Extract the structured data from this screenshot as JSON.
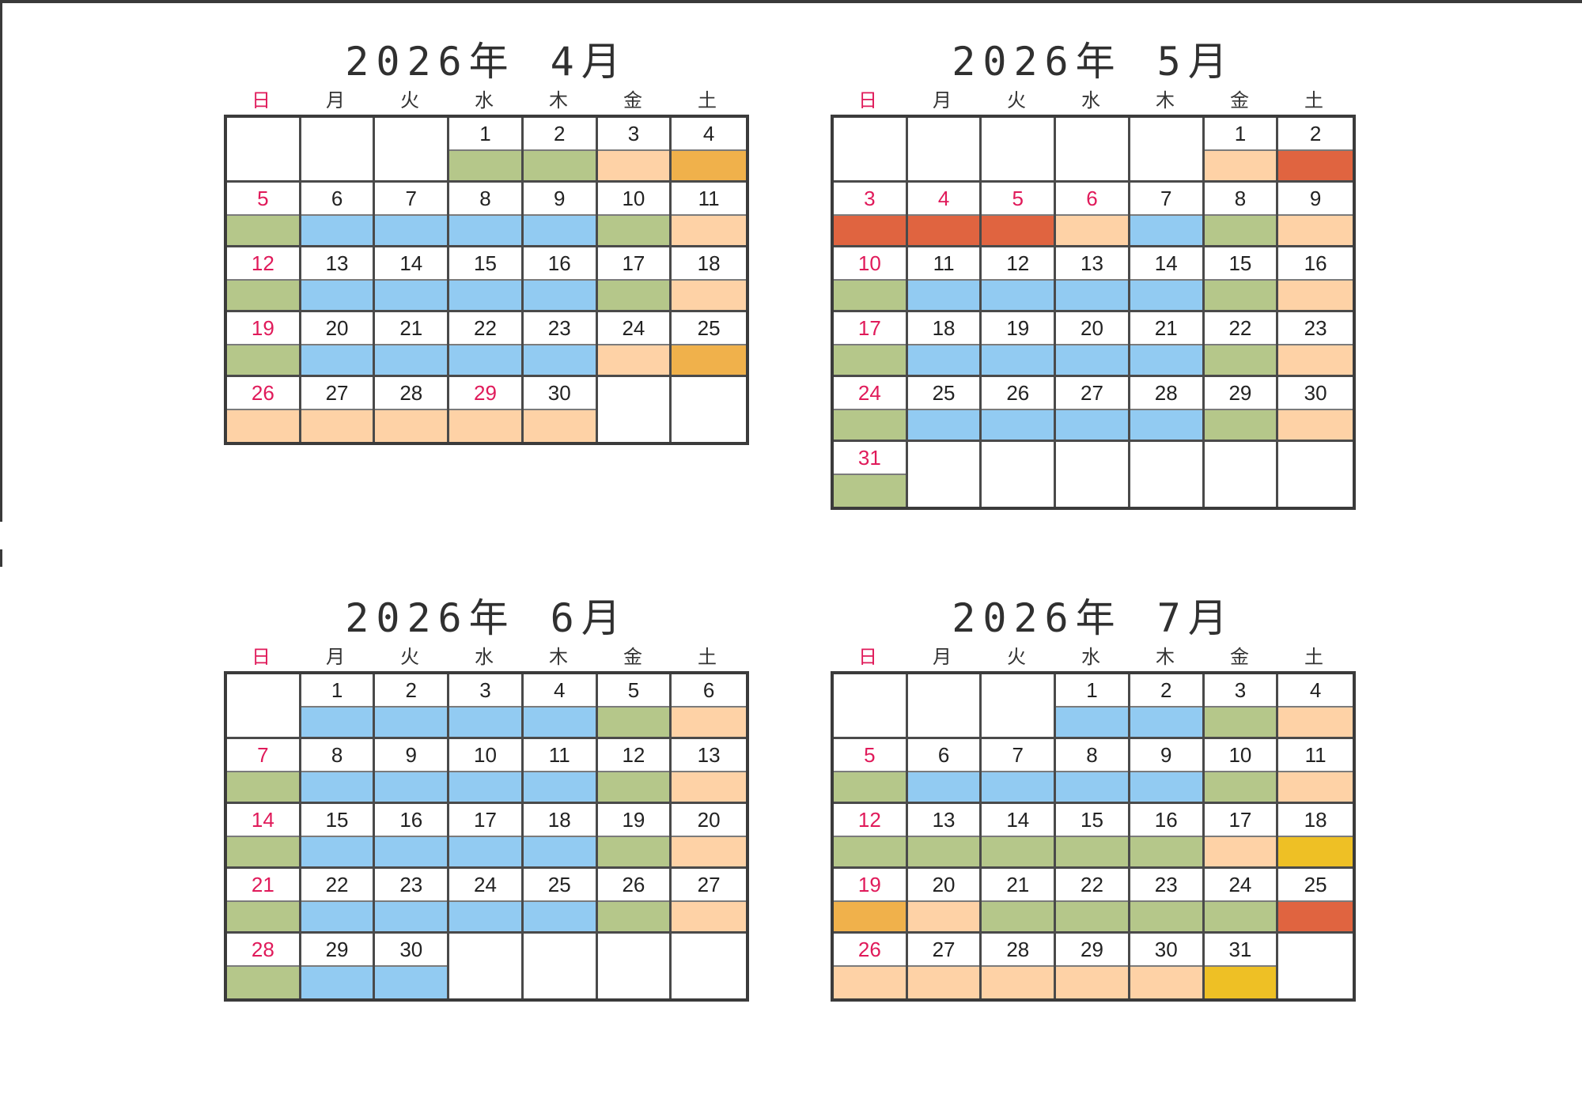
{
  "weekdays": [
    "日",
    "月",
    "火",
    "水",
    "木",
    "金",
    "土"
  ],
  "colors": {
    "green": "#b5c78a",
    "blue": "#92cbf2",
    "peach": "#fed2a6",
    "orange": "#f0b14b",
    "red": "#e06440",
    "yellow": "#eec025",
    "sunday_text": "#e01a5a"
  },
  "months": [
    {
      "year": "2026年",
      "month": "4月",
      "days": [
        {
          "d": "",
          "c": ""
        },
        {
          "d": "",
          "c": ""
        },
        {
          "d": "",
          "c": ""
        },
        {
          "d": "1",
          "c": "green"
        },
        {
          "d": "2",
          "c": "green"
        },
        {
          "d": "3",
          "c": "peach"
        },
        {
          "d": "4",
          "c": "orange"
        },
        {
          "d": "5",
          "c": "green"
        },
        {
          "d": "6",
          "c": "blue"
        },
        {
          "d": "7",
          "c": "blue"
        },
        {
          "d": "8",
          "c": "blue"
        },
        {
          "d": "9",
          "c": "blue"
        },
        {
          "d": "10",
          "c": "green"
        },
        {
          "d": "11",
          "c": "peach"
        },
        {
          "d": "12",
          "c": "green"
        },
        {
          "d": "13",
          "c": "blue"
        },
        {
          "d": "14",
          "c": "blue"
        },
        {
          "d": "15",
          "c": "blue"
        },
        {
          "d": "16",
          "c": "blue"
        },
        {
          "d": "17",
          "c": "green"
        },
        {
          "d": "18",
          "c": "peach"
        },
        {
          "d": "19",
          "c": "green"
        },
        {
          "d": "20",
          "c": "blue"
        },
        {
          "d": "21",
          "c": "blue"
        },
        {
          "d": "22",
          "c": "blue"
        },
        {
          "d": "23",
          "c": "blue"
        },
        {
          "d": "24",
          "c": "peach"
        },
        {
          "d": "25",
          "c": "orange"
        },
        {
          "d": "26",
          "c": "peach"
        },
        {
          "d": "27",
          "c": "peach"
        },
        {
          "d": "28",
          "c": "peach"
        },
        {
          "d": "29",
          "c": "peach",
          "holiday": true
        },
        {
          "d": "30",
          "c": "peach"
        },
        {
          "d": "",
          "c": ""
        },
        {
          "d": "",
          "c": ""
        }
      ]
    },
    {
      "year": "2026年",
      "month": "5月",
      "days": [
        {
          "d": "",
          "c": ""
        },
        {
          "d": "",
          "c": ""
        },
        {
          "d": "",
          "c": ""
        },
        {
          "d": "",
          "c": ""
        },
        {
          "d": "",
          "c": ""
        },
        {
          "d": "1",
          "c": "peach"
        },
        {
          "d": "2",
          "c": "red"
        },
        {
          "d": "3",
          "c": "red"
        },
        {
          "d": "4",
          "c": "red",
          "holiday": true
        },
        {
          "d": "5",
          "c": "red",
          "holiday": true
        },
        {
          "d": "6",
          "c": "peach",
          "holiday": true
        },
        {
          "d": "7",
          "c": "blue"
        },
        {
          "d": "8",
          "c": "green"
        },
        {
          "d": "9",
          "c": "peach"
        },
        {
          "d": "10",
          "c": "green"
        },
        {
          "d": "11",
          "c": "blue"
        },
        {
          "d": "12",
          "c": "blue"
        },
        {
          "d": "13",
          "c": "blue"
        },
        {
          "d": "14",
          "c": "blue"
        },
        {
          "d": "15",
          "c": "green"
        },
        {
          "d": "16",
          "c": "peach"
        },
        {
          "d": "17",
          "c": "green"
        },
        {
          "d": "18",
          "c": "blue"
        },
        {
          "d": "19",
          "c": "blue"
        },
        {
          "d": "20",
          "c": "blue"
        },
        {
          "d": "21",
          "c": "blue"
        },
        {
          "d": "22",
          "c": "green"
        },
        {
          "d": "23",
          "c": "peach"
        },
        {
          "d": "24",
          "c": "green"
        },
        {
          "d": "25",
          "c": "blue"
        },
        {
          "d": "26",
          "c": "blue"
        },
        {
          "d": "27",
          "c": "blue"
        },
        {
          "d": "28",
          "c": "blue"
        },
        {
          "d": "29",
          "c": "green"
        },
        {
          "d": "30",
          "c": "peach"
        },
        {
          "d": "31",
          "c": "green"
        },
        {
          "d": "",
          "c": ""
        },
        {
          "d": "",
          "c": ""
        },
        {
          "d": "",
          "c": ""
        },
        {
          "d": "",
          "c": ""
        },
        {
          "d": "",
          "c": ""
        },
        {
          "d": "",
          "c": ""
        }
      ]
    },
    {
      "year": "2026年",
      "month": "6月",
      "days": [
        {
          "d": "",
          "c": ""
        },
        {
          "d": "1",
          "c": "blue"
        },
        {
          "d": "2",
          "c": "blue"
        },
        {
          "d": "3",
          "c": "blue"
        },
        {
          "d": "4",
          "c": "blue"
        },
        {
          "d": "5",
          "c": "green"
        },
        {
          "d": "6",
          "c": "peach"
        },
        {
          "d": "7",
          "c": "green"
        },
        {
          "d": "8",
          "c": "blue"
        },
        {
          "d": "9",
          "c": "blue"
        },
        {
          "d": "10",
          "c": "blue"
        },
        {
          "d": "11",
          "c": "blue"
        },
        {
          "d": "12",
          "c": "green"
        },
        {
          "d": "13",
          "c": "peach"
        },
        {
          "d": "14",
          "c": "green"
        },
        {
          "d": "15",
          "c": "blue"
        },
        {
          "d": "16",
          "c": "blue"
        },
        {
          "d": "17",
          "c": "blue"
        },
        {
          "d": "18",
          "c": "blue"
        },
        {
          "d": "19",
          "c": "green"
        },
        {
          "d": "20",
          "c": "peach"
        },
        {
          "d": "21",
          "c": "green"
        },
        {
          "d": "22",
          "c": "blue"
        },
        {
          "d": "23",
          "c": "blue"
        },
        {
          "d": "24",
          "c": "blue"
        },
        {
          "d": "25",
          "c": "blue"
        },
        {
          "d": "26",
          "c": "green"
        },
        {
          "d": "27",
          "c": "peach"
        },
        {
          "d": "28",
          "c": "green"
        },
        {
          "d": "29",
          "c": "blue"
        },
        {
          "d": "30",
          "c": "blue"
        },
        {
          "d": "",
          "c": ""
        },
        {
          "d": "",
          "c": ""
        },
        {
          "d": "",
          "c": ""
        },
        {
          "d": "",
          "c": ""
        }
      ]
    },
    {
      "year": "2026年",
      "month": "7月",
      "days": [
        {
          "d": "",
          "c": ""
        },
        {
          "d": "",
          "c": ""
        },
        {
          "d": "",
          "c": ""
        },
        {
          "d": "1",
          "c": "blue"
        },
        {
          "d": "2",
          "c": "blue"
        },
        {
          "d": "3",
          "c": "green"
        },
        {
          "d": "4",
          "c": "peach"
        },
        {
          "d": "5",
          "c": "green"
        },
        {
          "d": "6",
          "c": "blue"
        },
        {
          "d": "7",
          "c": "blue"
        },
        {
          "d": "8",
          "c": "blue"
        },
        {
          "d": "9",
          "c": "blue"
        },
        {
          "d": "10",
          "c": "green"
        },
        {
          "d": "11",
          "c": "peach"
        },
        {
          "d": "12",
          "c": "green"
        },
        {
          "d": "13",
          "c": "green"
        },
        {
          "d": "14",
          "c": "green"
        },
        {
          "d": "15",
          "c": "green"
        },
        {
          "d": "16",
          "c": "green"
        },
        {
          "d": "17",
          "c": "peach"
        },
        {
          "d": "18",
          "c": "yellow"
        },
        {
          "d": "19",
          "c": "orange"
        },
        {
          "d": "20",
          "c": "peach"
        },
        {
          "d": "21",
          "c": "green"
        },
        {
          "d": "22",
          "c": "green"
        },
        {
          "d": "23",
          "c": "green"
        },
        {
          "d": "24",
          "c": "green"
        },
        {
          "d": "25",
          "c": "red"
        },
        {
          "d": "26",
          "c": "peach"
        },
        {
          "d": "27",
          "c": "peach"
        },
        {
          "d": "28",
          "c": "peach"
        },
        {
          "d": "29",
          "c": "peach"
        },
        {
          "d": "30",
          "c": "peach"
        },
        {
          "d": "31",
          "c": "yellow"
        },
        {
          "d": "",
          "c": ""
        }
      ]
    }
  ]
}
